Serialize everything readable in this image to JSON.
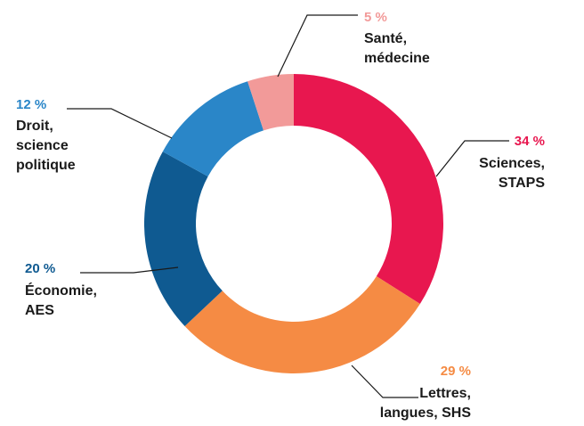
{
  "chart_data": {
    "type": "pie",
    "style": "donut",
    "title": "",
    "unit": "%",
    "slices": [
      {
        "key": "sciences",
        "value": 34,
        "pct_text": "34 %",
        "label_lines": [
          "Sciences,",
          "STAPS"
        ],
        "color": "#e8174f"
      },
      {
        "key": "lettres",
        "value": 29,
        "pct_text": "29 %",
        "label_lines": [
          "Lettres,",
          "langues, SHS"
        ],
        "color": "#f58b44"
      },
      {
        "key": "economie",
        "value": 20,
        "pct_text": "20 %",
        "label_lines": [
          "Économie,",
          "AES"
        ],
        "color": "#0f5a91"
      },
      {
        "key": "droit",
        "value": 12,
        "pct_text": "12 %",
        "label_lines": [
          "Droit,",
          "science",
          "politique"
        ],
        "color": "#2a86c8"
      },
      {
        "key": "sante",
        "value": 5,
        "pct_text": "5 %",
        "label_lines": [
          "Santé,",
          "médecine"
        ],
        "color": "#f29a99"
      }
    ]
  }
}
